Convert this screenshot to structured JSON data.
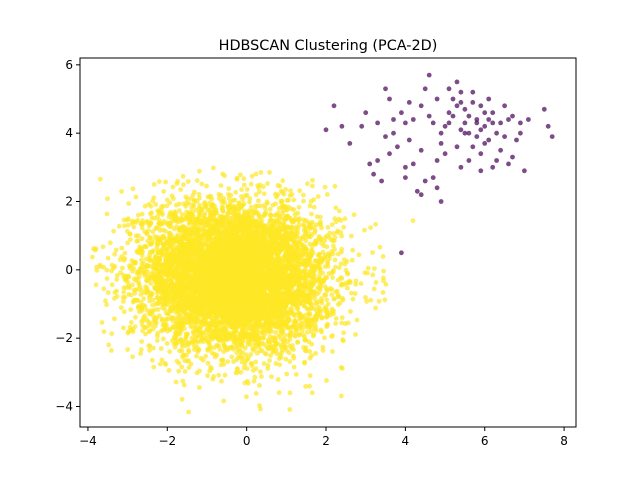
{
  "chart_data": {
    "type": "scatter",
    "title": "HDBSCAN Clustering (PCA-2D)",
    "xlabel": "",
    "ylabel": "",
    "xlim": [
      -4.2,
      8.3
    ],
    "ylim": [
      -4.6,
      6.2
    ],
    "xticks": [
      -4,
      -2,
      0,
      2,
      4,
      6,
      8
    ],
    "yticks": [
      -4,
      -2,
      0,
      2,
      4,
      6
    ],
    "grid": false,
    "legend": "none",
    "series": [
      {
        "cluster": 0,
        "color": "#440154",
        "opacity": 0.7,
        "points": [
          [
            2.2,
            4.8
          ],
          [
            2.4,
            4.2
          ],
          [
            2.0,
            4.1
          ],
          [
            2.6,
            3.7
          ],
          [
            2.9,
            4.2
          ],
          [
            3.1,
            3.1
          ],
          [
            3.0,
            4.6
          ],
          [
            3.3,
            3.2
          ],
          [
            3.2,
            2.8
          ],
          [
            3.4,
            2.6
          ],
          [
            3.6,
            3.4
          ],
          [
            3.7,
            4.0
          ],
          [
            3.9,
            4.6
          ],
          [
            3.6,
            5.0
          ],
          [
            3.5,
            5.3
          ],
          [
            4.0,
            3.0
          ],
          [
            4.1,
            3.8
          ],
          [
            4.2,
            4.4
          ],
          [
            4.4,
            4.8
          ],
          [
            4.5,
            5.3
          ],
          [
            4.6,
            5.7
          ],
          [
            4.7,
            2.7
          ],
          [
            4.8,
            2.4
          ],
          [
            4.3,
            2.3
          ],
          [
            4.5,
            2.6
          ],
          [
            4.8,
            3.2
          ],
          [
            4.9,
            3.7
          ],
          [
            5.0,
            4.2
          ],
          [
            5.1,
            4.6
          ],
          [
            5.2,
            5.0
          ],
          [
            5.3,
            5.5
          ],
          [
            5.4,
            4.9
          ],
          [
            5.5,
            4.3
          ],
          [
            5.6,
            4.0
          ],
          [
            5.7,
            3.6
          ],
          [
            5.8,
            4.4
          ],
          [
            5.9,
            4.8
          ],
          [
            6.0,
            4.2
          ],
          [
            6.1,
            3.8
          ],
          [
            6.2,
            4.6
          ],
          [
            6.3,
            4.0
          ],
          [
            6.4,
            3.5
          ],
          [
            6.5,
            3.9
          ],
          [
            6.6,
            4.4
          ],
          [
            6.7,
            3.3
          ],
          [
            6.8,
            3.8
          ],
          [
            6.9,
            4.3
          ],
          [
            7.0,
            2.9
          ],
          [
            7.1,
            4.4
          ],
          [
            7.5,
            4.7
          ],
          [
            7.6,
            4.2
          ],
          [
            7.7,
            3.9
          ],
          [
            5.2,
            4.5
          ],
          [
            5.5,
            4.7
          ],
          [
            5.8,
            4.3
          ],
          [
            6.0,
            4.6
          ],
          [
            5.4,
            4.1
          ],
          [
            5.7,
            4.9
          ],
          [
            6.1,
            4.4
          ],
          [
            5.3,
            4.8
          ],
          [
            5.6,
            4.5
          ],
          [
            5.9,
            4.1
          ],
          [
            6.2,
            4.3
          ],
          [
            5.1,
            4.3
          ],
          [
            5.5,
            4.0
          ],
          [
            5.8,
            3.9
          ],
          [
            6.0,
            3.7
          ],
          [
            5.3,
            3.6
          ],
          [
            4.9,
            4.0
          ],
          [
            4.7,
            4.3
          ],
          [
            5.0,
            3.4
          ],
          [
            5.6,
            3.2
          ],
          [
            5.9,
            3.4
          ],
          [
            6.3,
            3.2
          ],
          [
            4.4,
            3.5
          ],
          [
            4.2,
            3.1
          ],
          [
            3.8,
            3.6
          ],
          [
            4.0,
            4.3
          ],
          [
            4.6,
            4.5
          ],
          [
            6.5,
            4.8
          ],
          [
            6.7,
            4.5
          ],
          [
            6.9,
            4.0
          ],
          [
            6.4,
            4.3
          ],
          [
            6.1,
            5.0
          ],
          [
            5.7,
            5.2
          ],
          [
            5.4,
            5.2
          ],
          [
            5.1,
            5.3
          ],
          [
            4.8,
            5.0
          ],
          [
            4.1,
            4.9
          ],
          [
            3.7,
            4.4
          ],
          [
            3.5,
            3.9
          ],
          [
            3.3,
            4.3
          ],
          [
            6.6,
            3.1
          ],
          [
            6.2,
            3.0
          ],
          [
            5.9,
            2.9
          ],
          [
            5.4,
            3.0
          ],
          [
            4.4,
            2.2
          ],
          [
            4.9,
            2.0
          ],
          [
            3.9,
            0.5
          ],
          [
            4.0,
            2.7
          ]
        ]
      },
      {
        "cluster": 1,
        "color": "#fde725",
        "opacity": 0.7
      }
    ]
  }
}
